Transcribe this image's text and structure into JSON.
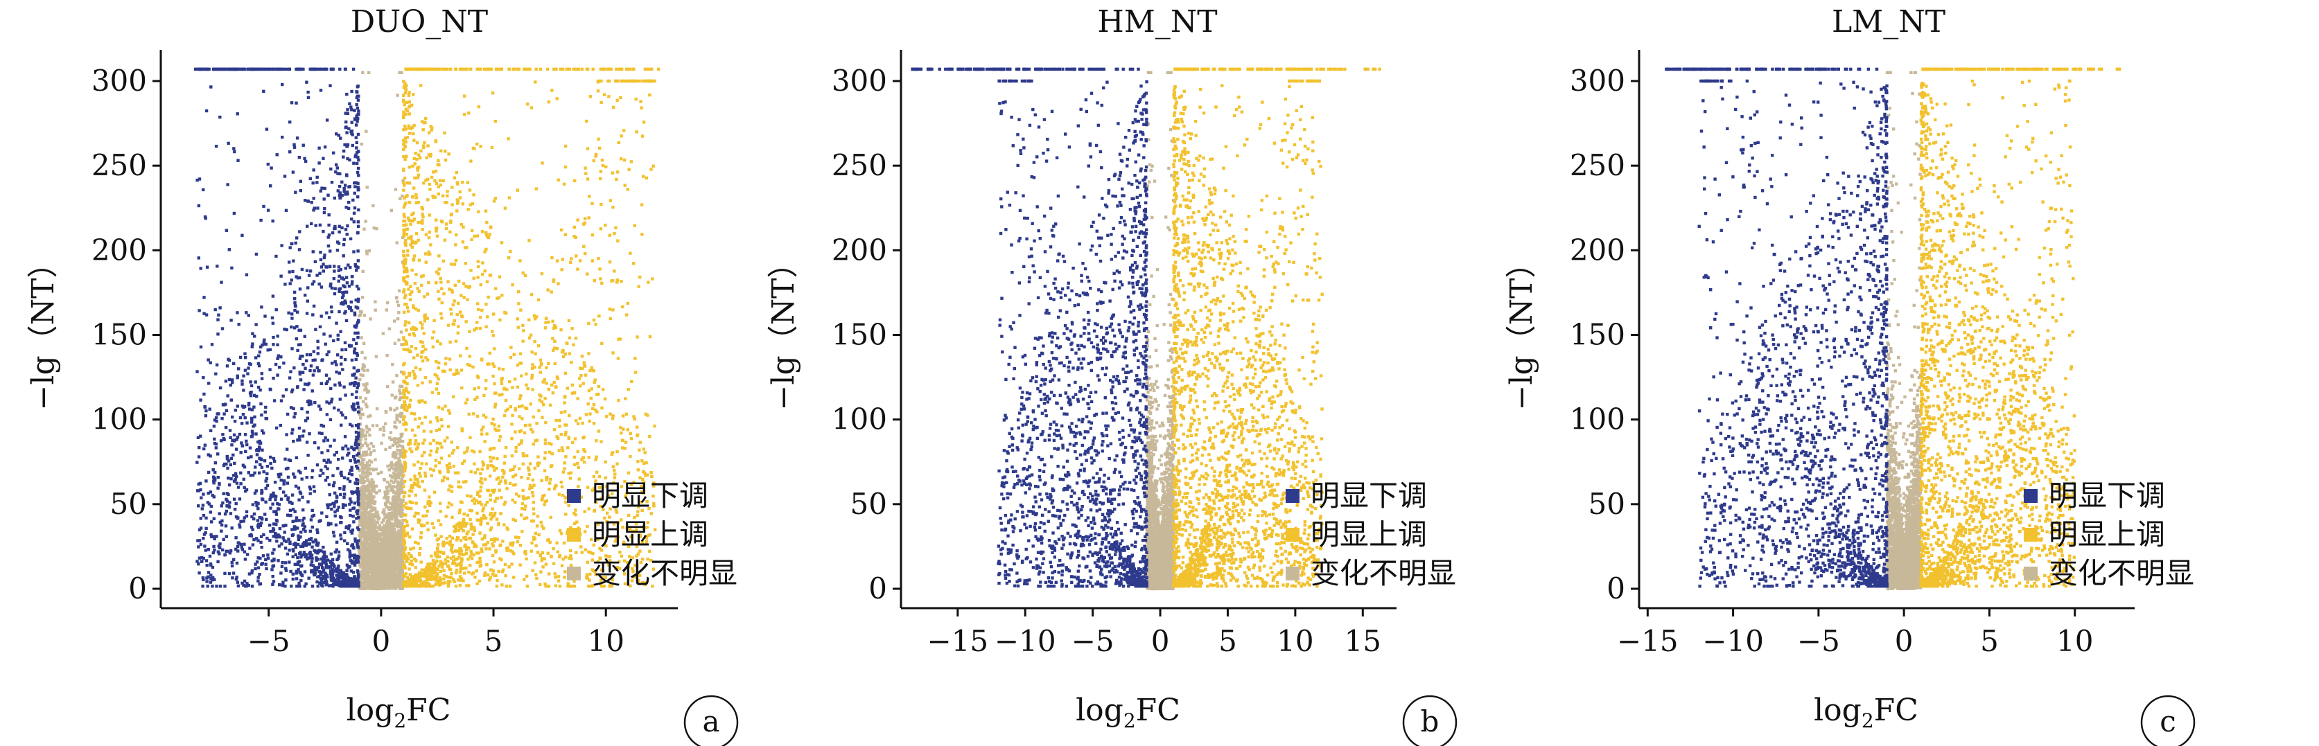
{
  "chart_data": [
    {
      "type": "scatter",
      "title": "DUO_NT",
      "xlabel_base": "log",
      "xlabel_sub": "2",
      "xlabel_tail": "FC",
      "ylabel": "−lg（NT）",
      "xlim": [
        -9.8,
        13.2
      ],
      "ylim": [
        -5,
        312
      ],
      "xticks": [
        -5,
        0,
        5,
        10
      ],
      "xtick_labels": [
        "−5",
        "0",
        "5",
        "10"
      ],
      "yticks": [
        0,
        50,
        100,
        150,
        200,
        250,
        300
      ],
      "ytick_labels": [
        "0",
        "50",
        "100",
        "150",
        "200",
        "250",
        "300"
      ],
      "panel_label": "a",
      "fc_threshold": 1,
      "cap_value": 307,
      "down_xmin": -8.2,
      "up_xmax": 12.2,
      "cap_down_range": [
        -8.3,
        -1.1
      ],
      "cap_up_range": [
        1.1,
        12.5
      ],
      "series": [
        {
          "name": "明显下调",
          "color": "#2e3a8c"
        },
        {
          "name": "明显上调",
          "color": "#f2c12e"
        },
        {
          "name": "变化不明显",
          "color": "#c8b89a"
        }
      ],
      "legend_position": "bottom-right"
    },
    {
      "type": "scatter",
      "title": "HM_NT",
      "xlabel_base": "log",
      "xlabel_sub": "2",
      "xlabel_tail": "FC",
      "ylabel": "−lg（NT）",
      "xlim": [
        -19.2,
        17.5
      ],
      "ylim": [
        -5,
        312
      ],
      "xticks": [
        -15,
        -10,
        -5,
        0,
        5,
        10,
        15
      ],
      "xtick_labels": [
        "−15",
        "−10",
        "−5",
        "0",
        "5",
        "10",
        "15"
      ],
      "yticks": [
        0,
        50,
        100,
        150,
        200,
        250,
        300
      ],
      "ytick_labels": [
        "0",
        "50",
        "100",
        "150",
        "200",
        "250",
        "300"
      ],
      "panel_label": "b",
      "fc_threshold": 1,
      "cap_value": 307,
      "down_xmin": -12,
      "up_xmax": 12,
      "cap_down_range": [
        -18.5,
        -1.1
      ],
      "cap_up_range": [
        1.1,
        16.5
      ],
      "series": [
        {
          "name": "明显下调",
          "color": "#2e3a8c"
        },
        {
          "name": "明显上调",
          "color": "#f2c12e"
        },
        {
          "name": "变化不明显",
          "color": "#c8b89a"
        }
      ],
      "legend_position": "bottom-right"
    },
    {
      "type": "scatter",
      "title": "LM_NT",
      "xlabel_base": "log",
      "xlabel_sub": "2",
      "xlabel_tail": "FC",
      "ylabel": "−lg（NT）",
      "xlim": [
        -15.5,
        13.5
      ],
      "ylim": [
        -5,
        312
      ],
      "xticks": [
        -15,
        -10,
        -5,
        0,
        5,
        10
      ],
      "xtick_labels": [
        "−15",
        "−10",
        "−5",
        "0",
        "5",
        "10"
      ],
      "yticks": [
        0,
        50,
        100,
        150,
        200,
        250,
        300
      ],
      "ytick_labels": [
        "0",
        "50",
        "100",
        "150",
        "200",
        "250",
        "300"
      ],
      "panel_label": "c",
      "fc_threshold": 1,
      "cap_value": 307,
      "down_xmin": -12,
      "up_xmax": 10,
      "cap_down_range": [
        -14,
        -1.1
      ],
      "cap_up_range": [
        1.1,
        12.8
      ],
      "series": [
        {
          "name": "明显下调",
          "color": "#2e3a8c"
        },
        {
          "name": "明显上调",
          "color": "#f2c12e"
        },
        {
          "name": "变化不明显",
          "color": "#c8b89a"
        }
      ],
      "legend_position": "bottom-right"
    }
  ]
}
